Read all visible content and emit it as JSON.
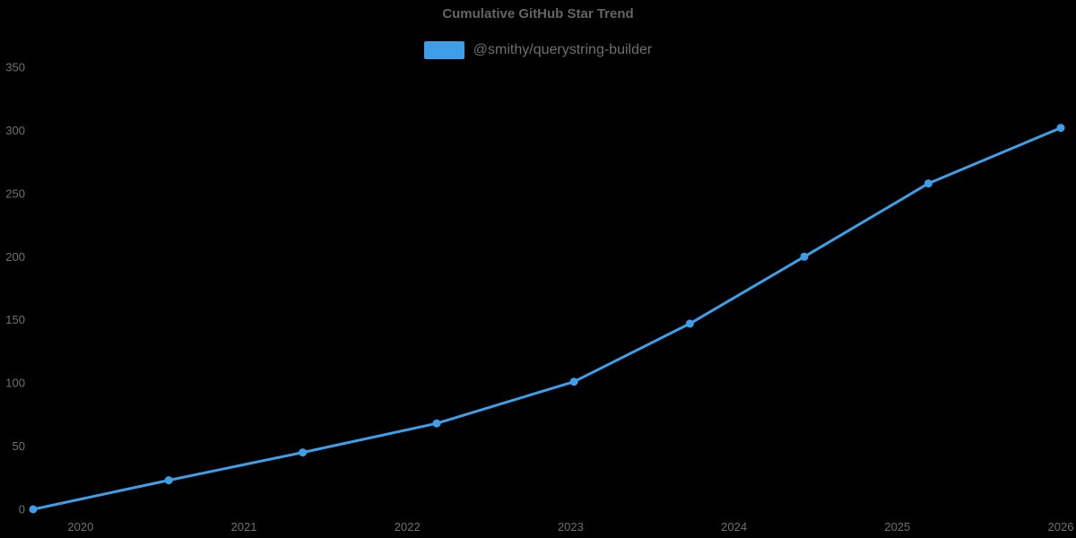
{
  "title": "Cumulative GitHub Star Trend",
  "legend": {
    "label": "@smithy/querystring-builder",
    "swatch_color": "#3E9FE8"
  },
  "colors": {
    "background": "#000000",
    "title_text": "#646464",
    "tick_text": "#707070",
    "legend_text": "#6E6E6E",
    "line": "#3E9FE8"
  },
  "chart_data": {
    "type": "line",
    "title": "Cumulative GitHub Star Trend",
    "xlabel": "",
    "ylabel": "",
    "grid": false,
    "legend_position": "top-center",
    "xlim": [
      2019.71,
      2026.0
    ],
    "ylim": [
      0,
      350
    ],
    "x_ticks": [
      {
        "value": 2020,
        "label": "2020"
      },
      {
        "value": 2021,
        "label": "2021"
      },
      {
        "value": 2022,
        "label": "2022"
      },
      {
        "value": 2023,
        "label": "2023"
      },
      {
        "value": 2024,
        "label": "2024"
      },
      {
        "value": 2025,
        "label": "2025"
      },
      {
        "value": 2026,
        "label": "2026"
      }
    ],
    "y_ticks": [
      {
        "value": 0,
        "label": "0"
      },
      {
        "value": 50,
        "label": "50"
      },
      {
        "value": 100,
        "label": "100"
      },
      {
        "value": 150,
        "label": "150"
      },
      {
        "value": 200,
        "label": "200"
      },
      {
        "value": 250,
        "label": "250"
      },
      {
        "value": 300,
        "label": "300"
      },
      {
        "value": 350,
        "label": "350"
      }
    ],
    "series": [
      {
        "name": "@smithy/querystring-builder",
        "color": "#3E9FE8",
        "line_width": 3,
        "marker": "circle",
        "marker_radius": 4.5,
        "points": [
          {
            "x": 2019.71,
            "y": 0
          },
          {
            "x": 2020.54,
            "y": 23
          },
          {
            "x": 2021.36,
            "y": 45
          },
          {
            "x": 2022.18,
            "y": 68
          },
          {
            "x": 2023.02,
            "y": 101
          },
          {
            "x": 2023.73,
            "y": 147
          },
          {
            "x": 2024.43,
            "y": 200
          },
          {
            "x": 2025.19,
            "y": 258
          },
          {
            "x": 2026.0,
            "y": 302
          }
        ]
      }
    ]
  }
}
